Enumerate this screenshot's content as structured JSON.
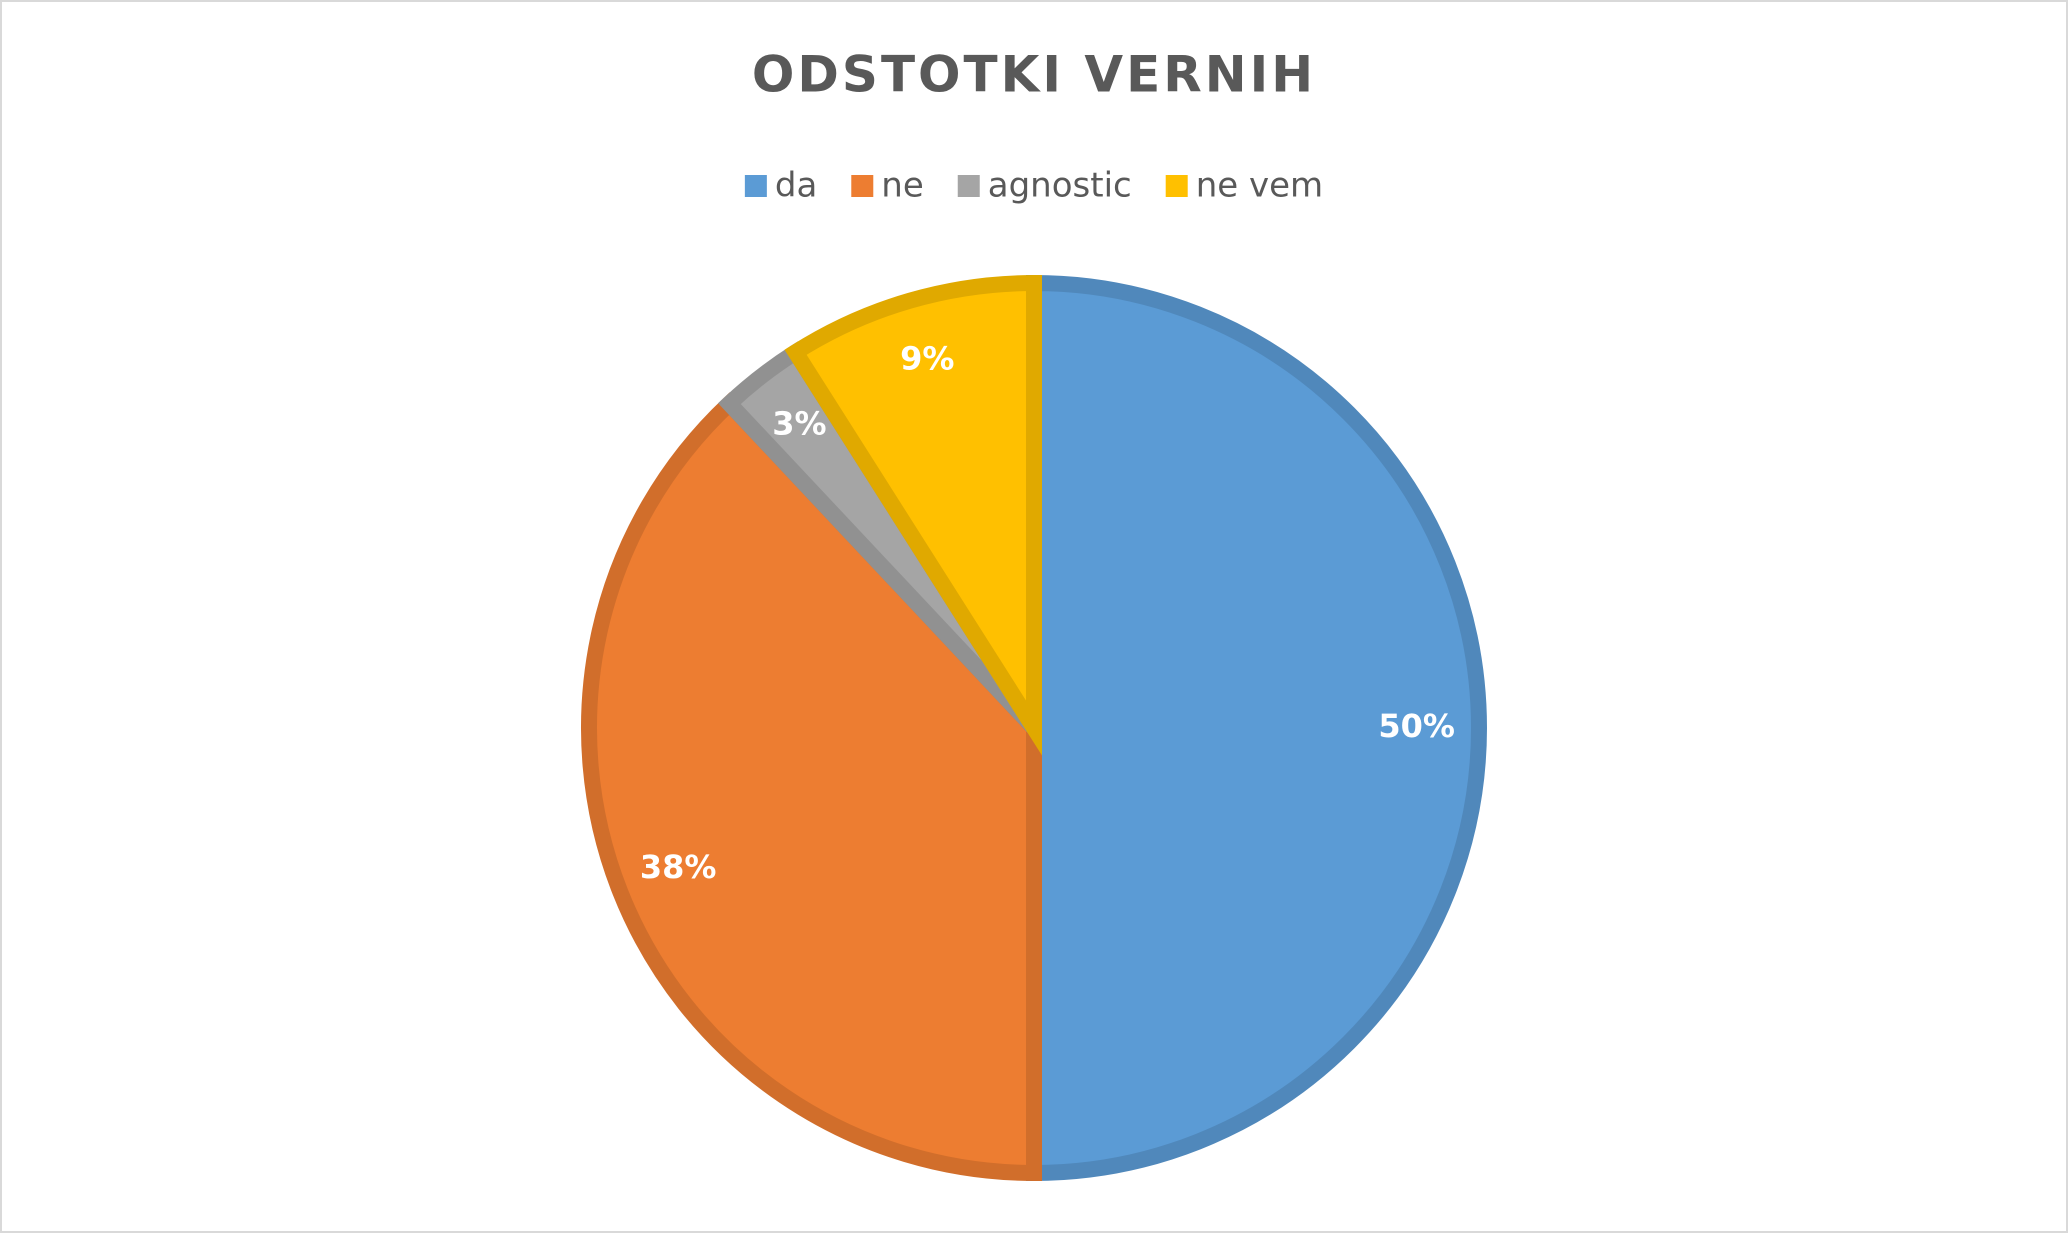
{
  "chart_data": {
    "type": "pie",
    "title": "ODSTOTKI VERNIH",
    "categories": [
      "da",
      "ne",
      "agnostic",
      "ne vem"
    ],
    "values": [
      50,
      38,
      3,
      9
    ],
    "value_labels": [
      "50%",
      "38%",
      "3%",
      "9%"
    ],
    "colors": [
      "#5b9bd5",
      "#ed7d31",
      "#a5a5a5",
      "#ffc000"
    ],
    "legend": "top"
  }
}
